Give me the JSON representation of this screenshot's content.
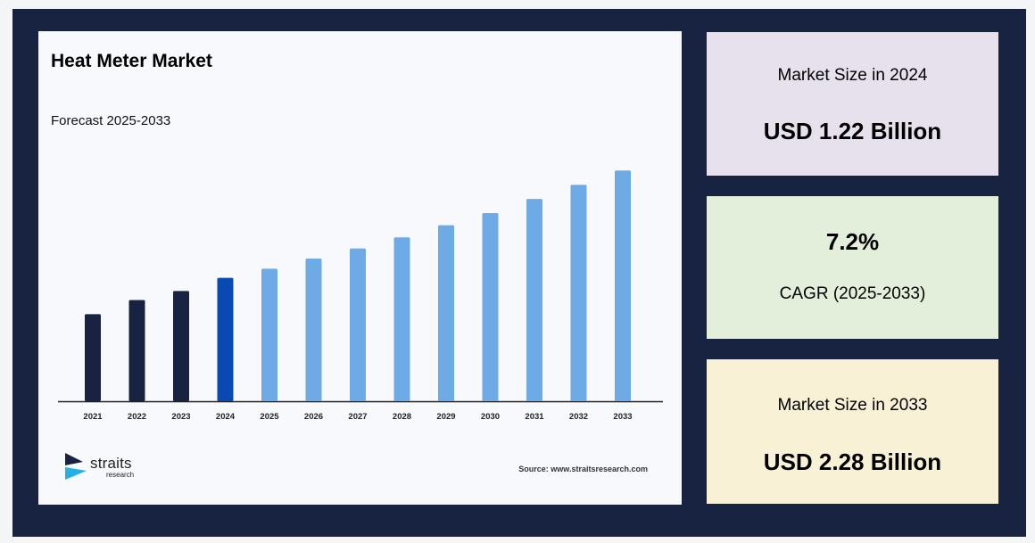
{
  "chart": {
    "title": "Heat Meter Market",
    "subtitle": "Forecast 2025-2033",
    "source": "Source: www.straitsresearch.com",
    "logo": {
      "name": "straits",
      "sub": "research"
    }
  },
  "stats": [
    {
      "label": "Market Size in 2024",
      "value": "USD 1.22 Billion"
    },
    {
      "value": "7.2%",
      "label": "CAGR (2025-2033)"
    },
    {
      "label": "Market Size in 2033",
      "value": "USD 2.28 Billion"
    }
  ],
  "colors": {
    "historical": "#172341",
    "base_year": "#0a49b2",
    "forecast": "#6eaae6",
    "frame": "#172341"
  },
  "chart_data": {
    "type": "bar",
    "categories": [
      "2021",
      "2022",
      "2023",
      "2024",
      "2025",
      "2026",
      "2027",
      "2028",
      "2029",
      "2030",
      "2031",
      "2032",
      "2033"
    ],
    "values": [
      0.86,
      1.0,
      1.09,
      1.22,
      1.31,
      1.41,
      1.51,
      1.62,
      1.74,
      1.86,
      2.0,
      2.14,
      2.28
    ],
    "bar_kind": [
      "historical",
      "historical",
      "historical",
      "base_year",
      "forecast",
      "forecast",
      "forecast",
      "forecast",
      "forecast",
      "forecast",
      "forecast",
      "forecast",
      "forecast"
    ],
    "title": "Heat Meter Market",
    "subtitle": "Forecast 2025-2033",
    "xlabel": "",
    "ylabel": "",
    "ylim": [
      0,
      2.6
    ],
    "grid": false,
    "legend": "none"
  }
}
